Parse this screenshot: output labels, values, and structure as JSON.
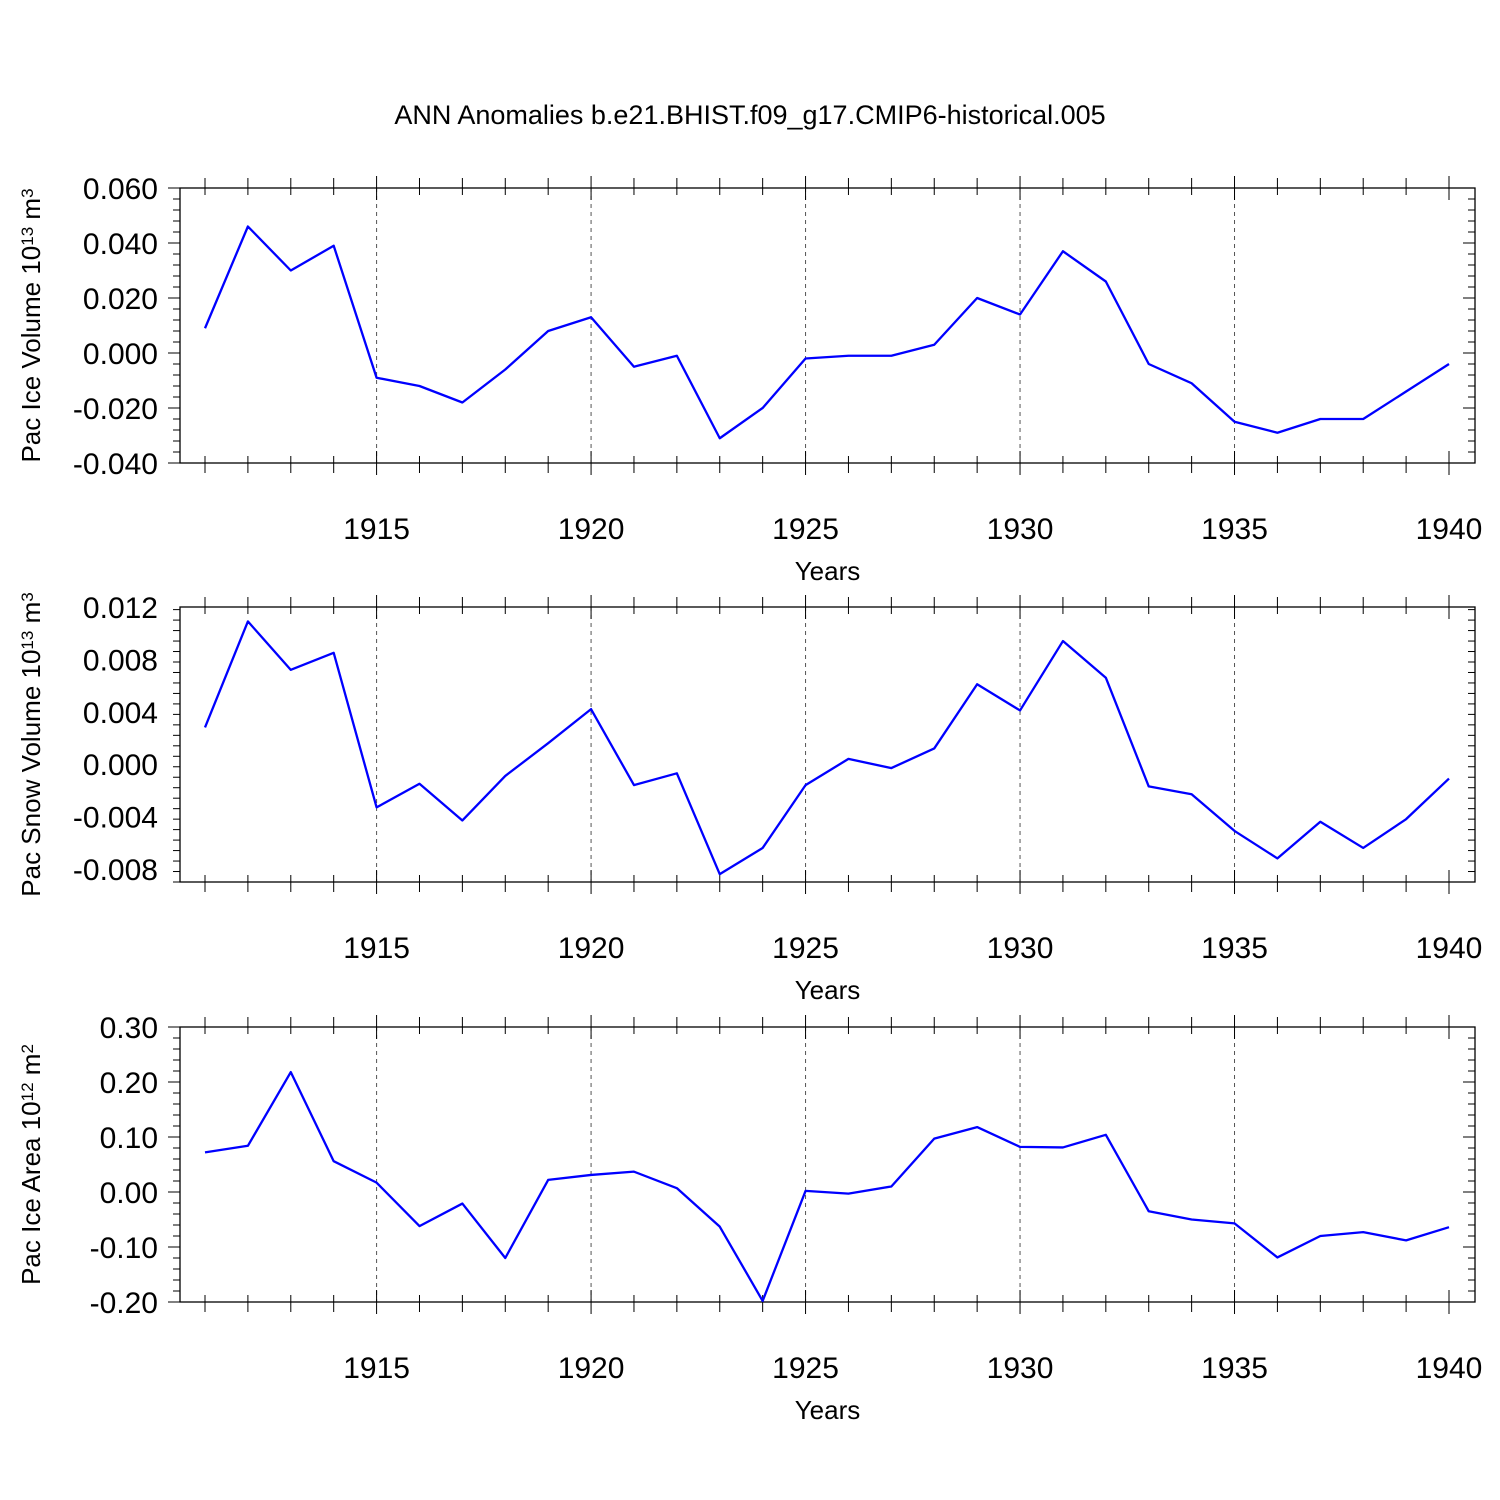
{
  "title": "ANN Anomalies b.e21.BHIST.f09_g17.CMIP6-historical.005",
  "line_color": "#0000ff",
  "chart_data": [
    {
      "type": "line",
      "ylabel": "Pac Ice Volume 10",
      "ylabel_exp": "13",
      "ylabel_unit": " m",
      "ylabel_unit_exp": "3",
      "xlabel": "Years",
      "x": [
        1911,
        1912,
        1913,
        1914,
        1915,
        1916,
        1917,
        1918,
        1919,
        1920,
        1921,
        1922,
        1923,
        1924,
        1925,
        1926,
        1927,
        1928,
        1929,
        1930,
        1931,
        1932,
        1933,
        1934,
        1935,
        1936,
        1937,
        1938,
        1939,
        1940
      ],
      "xlim": [
        1911,
        1940
      ],
      "xticks": [
        1915,
        1920,
        1925,
        1930,
        1935,
        1940
      ],
      "xtick_labels": [
        "1915",
        "1920",
        "1925",
        "1930",
        "1935",
        "1940"
      ],
      "ylim": [
        -0.04,
        0.06
      ],
      "yticks": [
        0.06,
        0.04,
        0.02,
        0.0,
        -0.02,
        -0.04
      ],
      "ytick_labels": [
        "0.060",
        "0.040",
        "0.020",
        "0.000",
        "-0.020",
        "-0.040"
      ],
      "grid": "dashed vertical at major x ticks",
      "series": [
        {
          "values": [
            0.009,
            0.046,
            0.03,
            0.039,
            -0.009,
            -0.012,
            -0.018,
            -0.006,
            0.008,
            0.013,
            -0.005,
            -0.001,
            -0.031,
            -0.02,
            -0.002,
            -0.001,
            -0.001,
            0.003,
            0.02,
            0.014,
            0.037,
            0.026,
            -0.004,
            -0.011,
            -0.025,
            -0.029,
            -0.024,
            -0.024,
            -0.014,
            -0.004
          ]
        }
      ]
    },
    {
      "type": "line",
      "ylabel": "Pac Snow Volume 10",
      "ylabel_exp": "13",
      "ylabel_unit": " m",
      "ylabel_unit_exp": "3",
      "xlabel": "Years",
      "x": [
        1911,
        1912,
        1913,
        1914,
        1915,
        1916,
        1917,
        1918,
        1919,
        1920,
        1921,
        1922,
        1923,
        1924,
        1925,
        1926,
        1927,
        1928,
        1929,
        1930,
        1931,
        1932,
        1933,
        1934,
        1935,
        1936,
        1937,
        1938,
        1939,
        1940
      ],
      "xlim": [
        1911,
        1940
      ],
      "xticks": [
        1915,
        1920,
        1925,
        1930,
        1935,
        1940
      ],
      "xtick_labels": [
        "1915",
        "1920",
        "1925",
        "1930",
        "1935",
        "1940"
      ],
      "ylim": [
        -0.009,
        0.012
      ],
      "yticks": [
        0.012,
        0.008,
        0.004,
        0.0,
        -0.004,
        -0.008
      ],
      "ytick_labels": [
        "0.012",
        "0.008",
        "0.004",
        "0.000",
        "-0.004",
        "-0.008"
      ],
      "grid": "dashed vertical at major x ticks",
      "series": [
        {
          "values": [
            0.0028,
            0.0109,
            0.0072,
            0.0085,
            -0.0033,
            -0.0015,
            -0.0043,
            -0.0009,
            0.0016,
            0.0042,
            -0.0016,
            -0.0007,
            -0.0084,
            -0.0064,
            -0.0016,
            0.0004,
            -0.0003,
            0.0012,
            0.0061,
            0.0041,
            0.0094,
            0.0066,
            -0.0017,
            -0.0023,
            -0.0051,
            -0.0072,
            -0.0044,
            -0.0064,
            -0.0042,
            -0.0011
          ]
        }
      ]
    },
    {
      "type": "line",
      "ylabel": "Pac Ice Area 10",
      "ylabel_exp": "12",
      "ylabel_unit": " m",
      "ylabel_unit_exp": "2",
      "xlabel": "Years",
      "x": [
        1911,
        1912,
        1913,
        1914,
        1915,
        1916,
        1917,
        1918,
        1919,
        1920,
        1921,
        1922,
        1923,
        1924,
        1925,
        1926,
        1927,
        1928,
        1929,
        1930,
        1931,
        1932,
        1933,
        1934,
        1935,
        1936,
        1937,
        1938,
        1939,
        1940
      ],
      "xlim": [
        1911,
        1940
      ],
      "xticks": [
        1915,
        1920,
        1925,
        1930,
        1935,
        1940
      ],
      "xtick_labels": [
        "1915",
        "1920",
        "1925",
        "1930",
        "1935",
        "1940"
      ],
      "ylim": [
        -0.2,
        0.3
      ],
      "yticks": [
        0.3,
        0.2,
        0.1,
        0.0,
        -0.1,
        -0.2
      ],
      "ytick_labels": [
        "0.30",
        "0.20",
        "0.10",
        "0.00",
        "-0.10",
        "-0.20"
      ],
      "grid": "dashed vertical at major x ticks",
      "series": [
        {
          "values": [
            0.072,
            0.084,
            0.218,
            0.056,
            0.017,
            -0.062,
            -0.021,
            -0.12,
            0.022,
            0.031,
            0.037,
            0.007,
            -0.063,
            -0.198,
            0.002,
            -0.003,
            0.01,
            0.097,
            0.118,
            0.082,
            0.081,
            0.104,
            -0.035,
            -0.05,
            -0.057,
            -0.119,
            -0.08,
            -0.073,
            -0.088,
            -0.064
          ]
        }
      ]
    }
  ]
}
